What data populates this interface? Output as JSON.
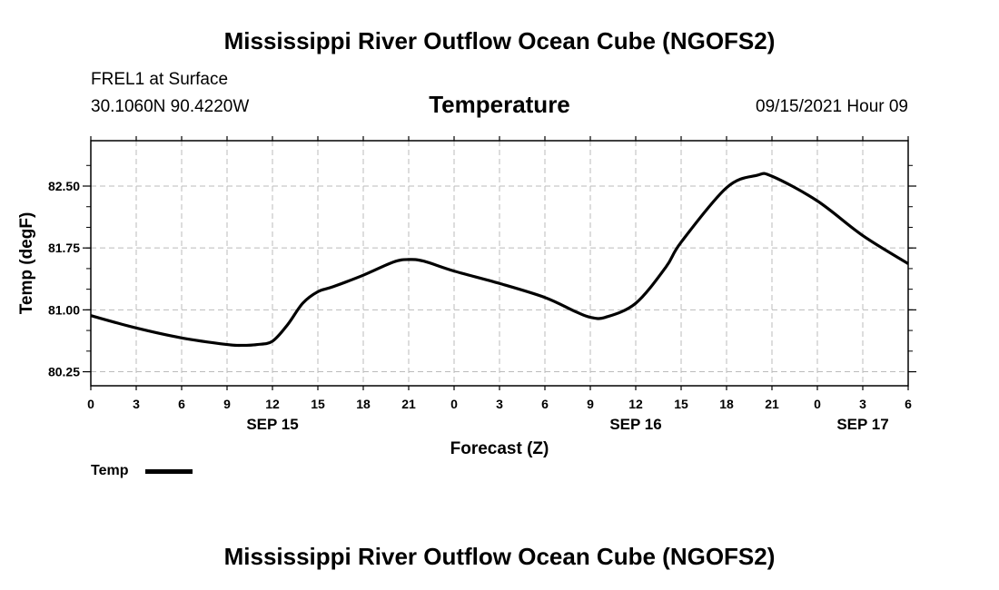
{
  "header": {
    "title": "Mississippi River Outflow Ocean Cube (NGOFS2)",
    "station": "FREL1 at Surface",
    "coords": "30.1060N  90.4220W",
    "variable": "Temperature",
    "timestamp": "09/15/2021 Hour 09"
  },
  "footer": {
    "title": "Mississippi River Outflow Ocean Cube (NGOFS2)"
  },
  "legend": {
    "label": "Temp"
  },
  "chart_data": {
    "type": "line",
    "title": "Temperature",
    "xlabel": "Forecast (Z)",
    "ylabel": "Temp (degF)",
    "xlim": [
      0,
      54
    ],
    "ylim": [
      80.08,
      83.05
    ],
    "grid": true,
    "legend_position": "bottom-left",
    "x_ticks": [
      {
        "x": 0,
        "label": "0"
      },
      {
        "x": 3,
        "label": "3"
      },
      {
        "x": 6,
        "label": "6"
      },
      {
        "x": 9,
        "label": "9"
      },
      {
        "x": 12,
        "label": "12"
      },
      {
        "x": 15,
        "label": "15"
      },
      {
        "x": 18,
        "label": "18"
      },
      {
        "x": 21,
        "label": "21"
      },
      {
        "x": 24,
        "label": "0"
      },
      {
        "x": 27,
        "label": "3"
      },
      {
        "x": 30,
        "label": "6"
      },
      {
        "x": 33,
        "label": "9"
      },
      {
        "x": 36,
        "label": "12"
      },
      {
        "x": 39,
        "label": "15"
      },
      {
        "x": 42,
        "label": "18"
      },
      {
        "x": 45,
        "label": "21"
      },
      {
        "x": 48,
        "label": "0"
      },
      {
        "x": 51,
        "label": "3"
      },
      {
        "x": 54,
        "label": "6"
      }
    ],
    "date_labels": [
      {
        "x": 12,
        "label": "SEP 15"
      },
      {
        "x": 36,
        "label": "SEP 16"
      },
      {
        "x": 51,
        "label": "SEP 17"
      }
    ],
    "y_ticks": [
      {
        "y": 80.25,
        "label": "80.25"
      },
      {
        "y": 81.0,
        "label": "81.00"
      },
      {
        "y": 81.75,
        "label": "81.75"
      },
      {
        "y": 82.5,
        "label": "82.50"
      }
    ],
    "series": [
      {
        "name": "Temp",
        "color": "#000000",
        "x": [
          0,
          3,
          6,
          9,
          10,
          11,
          12,
          13,
          14,
          15,
          16,
          18,
          20,
          21,
          22,
          24,
          27,
          30,
          32,
          33,
          34,
          36,
          38,
          39,
          42,
          44,
          45,
          48,
          51,
          54
        ],
        "y": [
          80.93,
          80.78,
          80.66,
          80.58,
          80.57,
          80.58,
          80.62,
          80.82,
          81.08,
          81.22,
          81.28,
          81.42,
          81.58,
          81.61,
          81.59,
          81.47,
          81.32,
          81.15,
          80.98,
          80.91,
          80.91,
          81.08,
          81.52,
          81.82,
          82.48,
          82.63,
          82.62,
          82.32,
          81.9,
          81.56
        ]
      }
    ]
  }
}
